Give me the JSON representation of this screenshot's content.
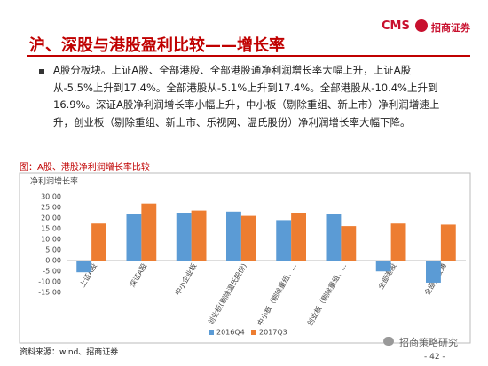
{
  "header": {
    "logo": "CMS",
    "company": "招商证券"
  },
  "title": "沪、深股与港股盈利比较——增长率",
  "bullet": "A股分板块。上证A股、全部港股、全部港股通净利润增长率大幅上升，上证A股从-5.5%上升到17.4%。全部港股从-5.1%上升到17.4%。全部港股从-10.4%上升到16.9%。深证A股净利润增长率小幅上升，中小板（剔除重组、新上市）净利润增速上升，创业板（剔除重组、新上市、乐视网、温氏股份）净利润增长率大幅下降。",
  "figure_caption": "图：A股、港股净利润增长率比较",
  "chart_data": {
    "type": "bar",
    "title": "净利润增长率",
    "categories": [
      "上证A股",
      "深证A股",
      "中小企业板",
      "创业板(剔除温氏股份)",
      "中小板（剔除重组、...",
      "创业板（剔除重组、...",
      "全部港股",
      "全部港股通"
    ],
    "series": [
      {
        "name": "2016Q4",
        "color": "#5b9bd5",
        "values": [
          -5.5,
          22,
          22.5,
          23,
          19,
          22,
          -5.1,
          -10.4
        ]
      },
      {
        "name": "2017Q3",
        "color": "#ed7d31",
        "values": [
          17.4,
          26.8,
          23.5,
          21,
          22.5,
          16.2,
          17.4,
          16.9
        ]
      }
    ],
    "ylim": [
      -15,
      30
    ],
    "yticks": [
      {
        "value": -15,
        "label": "-15.00"
      },
      {
        "value": -10,
        "label": "-10.00"
      },
      {
        "value": -5,
        "label": "-5.00"
      },
      {
        "value": 0,
        "label": "0.00"
      },
      {
        "value": 5,
        "label": "5.00"
      },
      {
        "value": 10,
        "label": "10.00"
      },
      {
        "value": 15,
        "label": "15.00"
      },
      {
        "value": 20,
        "label": "20.00"
      },
      {
        "value": 25,
        "label": "25.00"
      },
      {
        "value": 30,
        "label": "30.00"
      }
    ],
    "grid": false,
    "legend": "bottom"
  },
  "source": "资料来源：wind、招商证券",
  "watermark": "招商策略研究",
  "page_number": "- 42 -"
}
